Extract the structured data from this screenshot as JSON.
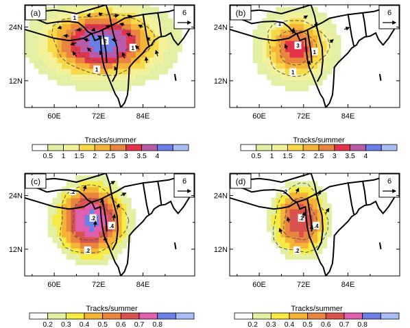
{
  "units_title": "Tracks/summer",
  "reference_vector_value": "6",
  "chart_data": [
    {
      "type": "heatmap",
      "panel_label": "(a)",
      "x_ticks": [
        "60E",
        "72E",
        "84E"
      ],
      "y_ticks": [
        "24N",
        "12N"
      ],
      "xlim": [
        52,
        98
      ],
      "ylim": [
        6,
        29
      ],
      "colorbar_levels": [
        "0.5",
        "1",
        "1.5",
        "2",
        "2.5",
        "3",
        "3.5",
        "4"
      ],
      "colorbar_colors": [
        "#ffffff",
        "#e3f0a4",
        "#f3f29a",
        "#f7da4a",
        "#f5b338",
        "#e9853e",
        "#e3344a",
        "#b95ba8",
        "#6b7fe6",
        "#a8bdf5"
      ],
      "blob": {
        "cx": 73,
        "cy": 20.5,
        "rx": 15,
        "ry": 7.5,
        "peak": 4.3
      },
      "contour_labels": [
        "1",
        "2",
        "1",
        "1"
      ]
    },
    {
      "type": "heatmap",
      "panel_label": "(b)",
      "x_ticks": [
        "60E",
        "72E",
        "84E"
      ],
      "y_ticks": [
        "24N",
        "12N"
      ],
      "xlim": [
        52,
        98
      ],
      "ylim": [
        6,
        29
      ],
      "colorbar_levels": [
        "0.5",
        "1",
        "1.5",
        "2",
        "2.5",
        "3",
        "3.5",
        "4"
      ],
      "colorbar_colors": [
        "#ffffff",
        "#e3f0a4",
        "#f3f29a",
        "#f7da4a",
        "#f5b338",
        "#e9853e",
        "#e3344a",
        "#b95ba8",
        "#6b7fe6",
        "#a8bdf5"
      ],
      "blob": {
        "cx": 70,
        "cy": 19.5,
        "rx": 9,
        "ry": 7,
        "peak": 3.3
      },
      "contour_labels": [
        "1",
        "3",
        "1",
        "1"
      ]
    },
    {
      "type": "heatmap",
      "panel_label": "(c)",
      "x_ticks": [
        "60E",
        "72E",
        "84E"
      ],
      "y_ticks": [
        "24N",
        "12N"
      ],
      "xlim": [
        52,
        98
      ],
      "ylim": [
        6,
        29
      ],
      "colorbar_levels": [
        "0.2",
        "0.3",
        "0.4",
        "0.5",
        "0.6",
        "0.7",
        "0.8"
      ],
      "colorbar_colors": [
        "#ffffff",
        "#e3f0a4",
        "#f7ea42",
        "#f5b338",
        "#e9853e",
        "#d9534c",
        "#e060b0",
        "#6b7fe6",
        "#a8bdf5"
      ],
      "blob": {
        "cx": 70,
        "cy": 18.5,
        "rx": 10,
        "ry": 8.5,
        "peak": 0.85
      },
      "contour_labels": [
        ".2",
        ".2",
        ".4",
        ".2"
      ]
    },
    {
      "type": "heatmap",
      "panel_label": "(d)",
      "x_ticks": [
        "60E",
        "72E",
        "84E"
      ],
      "y_ticks": [
        "24N",
        "12N"
      ],
      "xlim": [
        52,
        98
      ],
      "ylim": [
        6,
        29
      ],
      "colorbar_levels": [
        "0.2",
        "0.3",
        "0.4",
        "0.5",
        "0.6",
        "0.7",
        "0.8"
      ],
      "colorbar_colors": [
        "#ffffff",
        "#e3f0a4",
        "#f7ea42",
        "#f5b338",
        "#e9853e",
        "#d9534c",
        "#e060b0",
        "#6b7fe6",
        "#a8bdf5"
      ],
      "blob": {
        "cx": 71,
        "cy": 18.5,
        "rx": 8,
        "ry": 8.5,
        "peak": 0.7
      },
      "contour_labels": [
        ".2",
        ".2",
        ".4",
        ".2"
      ]
    }
  ]
}
